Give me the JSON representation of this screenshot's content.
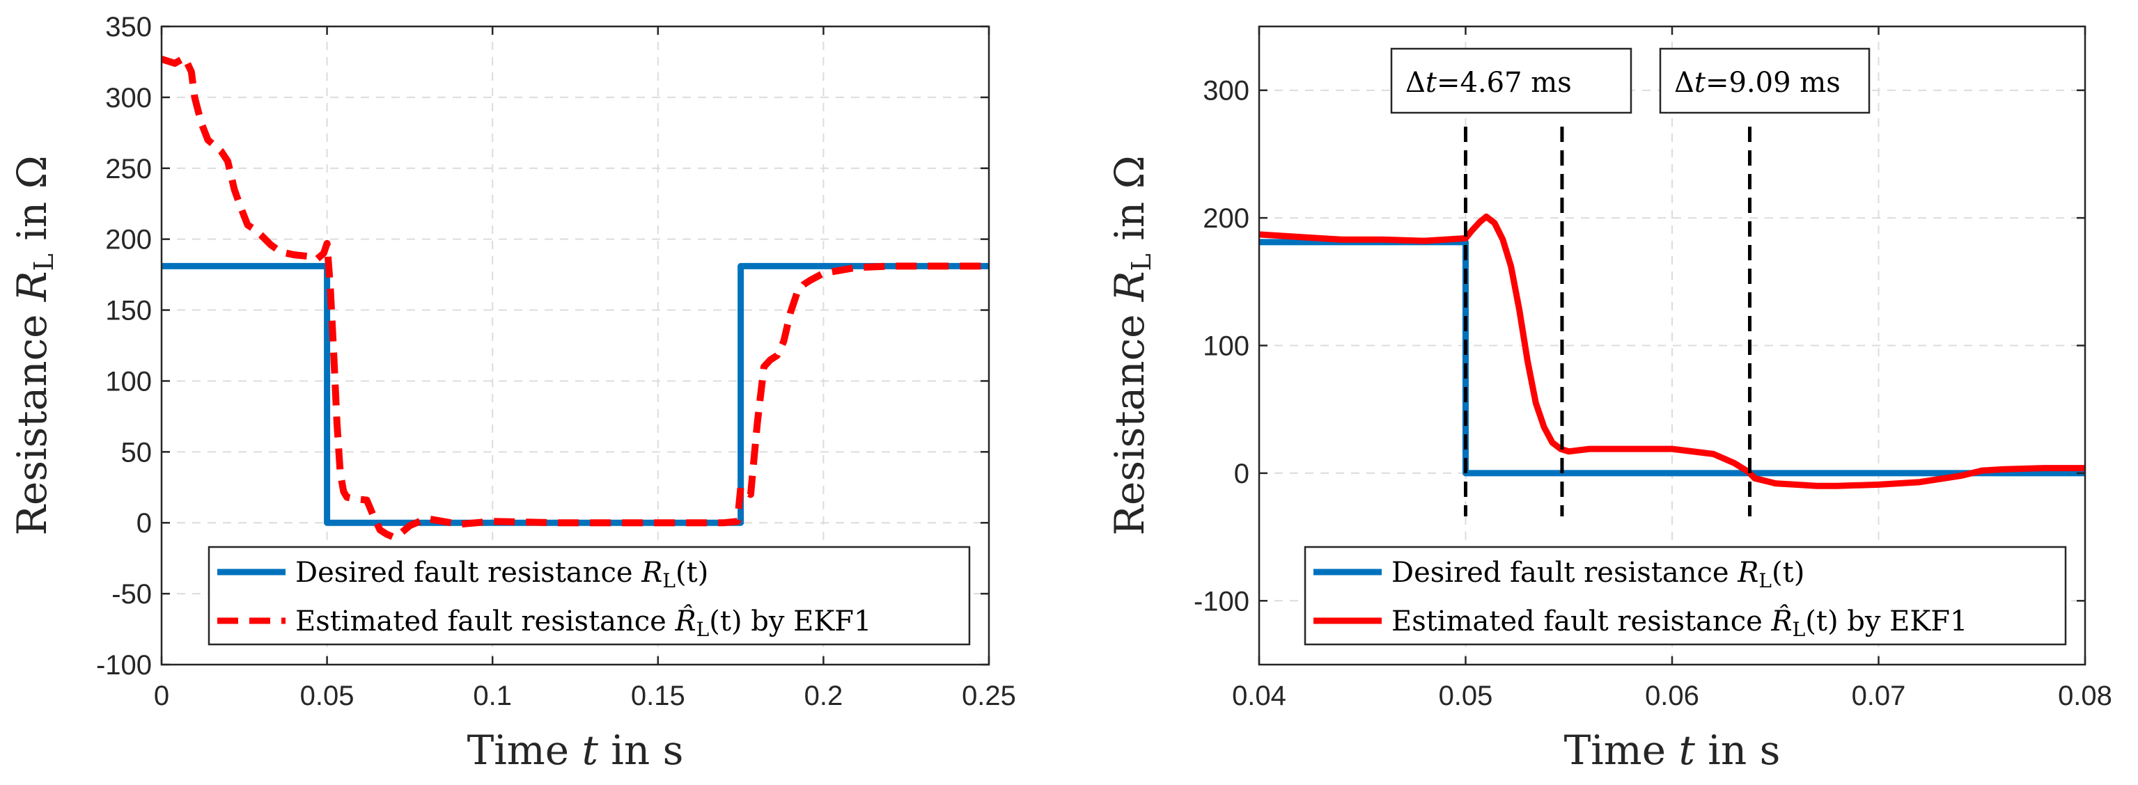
{
  "chart_data": [
    {
      "type": "line",
      "xlabel": "Time t in s",
      "ylabel": "Resistance R_L in Ω",
      "xlim": [
        0,
        0.25
      ],
      "ylim": [
        -100,
        350
      ],
      "xticks": [
        0,
        0.05,
        0.1,
        0.15,
        0.2,
        0.25
      ],
      "xtick_labels": [
        "0",
        "0.05",
        "0.1",
        "0.15",
        "0.2",
        "0.25"
      ],
      "yticks": [
        -100,
        -50,
        0,
        50,
        100,
        150,
        200,
        250,
        300,
        350
      ],
      "ytick_labels": [
        "-100",
        "-50",
        "0",
        "50",
        "100",
        "150",
        "200",
        "250",
        "300",
        "350"
      ],
      "grid": true,
      "legend_position": "bottom-right",
      "series": [
        {
          "name": "Desired fault resistance R_L(t)",
          "legend_main": "Desired fault resistance ",
          "legend_sym": "R",
          "legend_sub": "L",
          "legend_tail": "(t)",
          "color": "#0072bd",
          "style": "solid",
          "x": [
            0,
            0.05,
            0.05,
            0.175,
            0.175,
            0.25
          ],
          "y": [
            181,
            181,
            0,
            0,
            181,
            181
          ]
        },
        {
          "name": "Estimated fault resistance R̂_L(t) by EKF1",
          "legend_main": "Estimated fault resistance ",
          "legend_sym": "R̂",
          "legend_sub": "L",
          "legend_tail": "(t) by EKF1",
          "color": "#ff0000",
          "style": "dashed",
          "x": [
            0,
            0.004,
            0.007,
            0.009,
            0.01,
            0.012,
            0.014,
            0.016,
            0.018,
            0.02,
            0.022,
            0.024,
            0.026,
            0.028,
            0.03,
            0.033,
            0.036,
            0.04,
            0.044,
            0.047,
            0.049,
            0.05,
            0.051,
            0.052,
            0.053,
            0.054,
            0.055,
            0.056,
            0.058,
            0.062,
            0.064,
            0.066,
            0.068,
            0.07,
            0.072,
            0.075,
            0.08,
            0.09,
            0.1,
            0.12,
            0.15,
            0.17,
            0.174,
            0.175,
            0.176,
            0.178,
            0.18,
            0.182,
            0.184,
            0.186,
            0.188,
            0.19,
            0.192,
            0.194,
            0.196,
            0.2,
            0.21,
            0.22,
            0.25
          ],
          "y": [
            327,
            324,
            328,
            318,
            300,
            282,
            270,
            266,
            262,
            255,
            235,
            222,
            210,
            207,
            203,
            196,
            191,
            189,
            188,
            186,
            190,
            197,
            165,
            120,
            70,
            35,
            22,
            18,
            17,
            16,
            5,
            -5,
            -8,
            -10,
            -8,
            -2,
            3,
            -1,
            1,
            0,
            0,
            0,
            1,
            25,
            22,
            20,
            70,
            110,
            115,
            118,
            128,
            148,
            162,
            168,
            171,
            176,
            180,
            181,
            181
          ]
        }
      ]
    },
    {
      "type": "line",
      "xlabel": "Time t in s",
      "ylabel": "Resistance R_L in Ω",
      "xlim": [
        0.04,
        0.08
      ],
      "ylim": [
        -150,
        350
      ],
      "xticks": [
        0.04,
        0.05,
        0.06,
        0.07,
        0.08
      ],
      "xtick_labels": [
        "0.04",
        "0.05",
        "0.06",
        "0.07",
        "0.08"
      ],
      "yticks": [
        -100,
        0,
        100,
        200,
        300
      ],
      "ytick_labels": [
        "-100",
        "0",
        "100",
        "200",
        "300"
      ],
      "grid": true,
      "legend_position": "bottom-right",
      "series": [
        {
          "name": "Desired fault resistance R_L(t)",
          "legend_main": "Desired fault resistance ",
          "legend_sym": "R",
          "legend_sub": "L",
          "legend_tail": "(t)",
          "color": "#0072bd",
          "style": "solid",
          "x": [
            0.04,
            0.05,
            0.05,
            0.08
          ],
          "y": [
            181,
            181,
            0,
            0
          ]
        },
        {
          "name": "Estimated fault resistance R̂_L(t) by EKF1",
          "legend_main": "Estimated fault resistance ",
          "legend_sym": "R̂",
          "legend_sub": "L",
          "legend_tail": "(t) by EKF1",
          "color": "#ff0000",
          "style": "solid",
          "x": [
            0.04,
            0.042,
            0.044,
            0.046,
            0.048,
            0.05,
            0.0503,
            0.0507,
            0.051,
            0.0514,
            0.0518,
            0.0522,
            0.0526,
            0.053,
            0.0534,
            0.0538,
            0.0542,
            0.0546,
            0.0548,
            0.055,
            0.056,
            0.058,
            0.06,
            0.062,
            0.063,
            0.0637,
            0.064,
            0.065,
            0.066,
            0.067,
            0.068,
            0.07,
            0.072,
            0.074,
            0.075,
            0.076,
            0.078,
            0.08
          ],
          "y": [
            187,
            185,
            183,
            183,
            182,
            184,
            190,
            197,
            201,
            196,
            183,
            162,
            128,
            88,
            55,
            36,
            24,
            19,
            18,
            17,
            19,
            19,
            19,
            15,
            8,
            1,
            -4,
            -8,
            -9,
            -10,
            -10,
            -9,
            -7,
            -2,
            2,
            3,
            4,
            4
          ]
        }
      ],
      "annotations": [
        {
          "label": "4.67 ms",
          "delta": "Δ",
          "var": "t",
          "eq": "=",
          "interval": [
            0.05,
            0.05467
          ]
        },
        {
          "label": "9.09 ms",
          "delta": "Δ",
          "var": "t",
          "eq": "=",
          "interval": [
            0.05467,
            0.06376
          ]
        }
      ]
    }
  ]
}
